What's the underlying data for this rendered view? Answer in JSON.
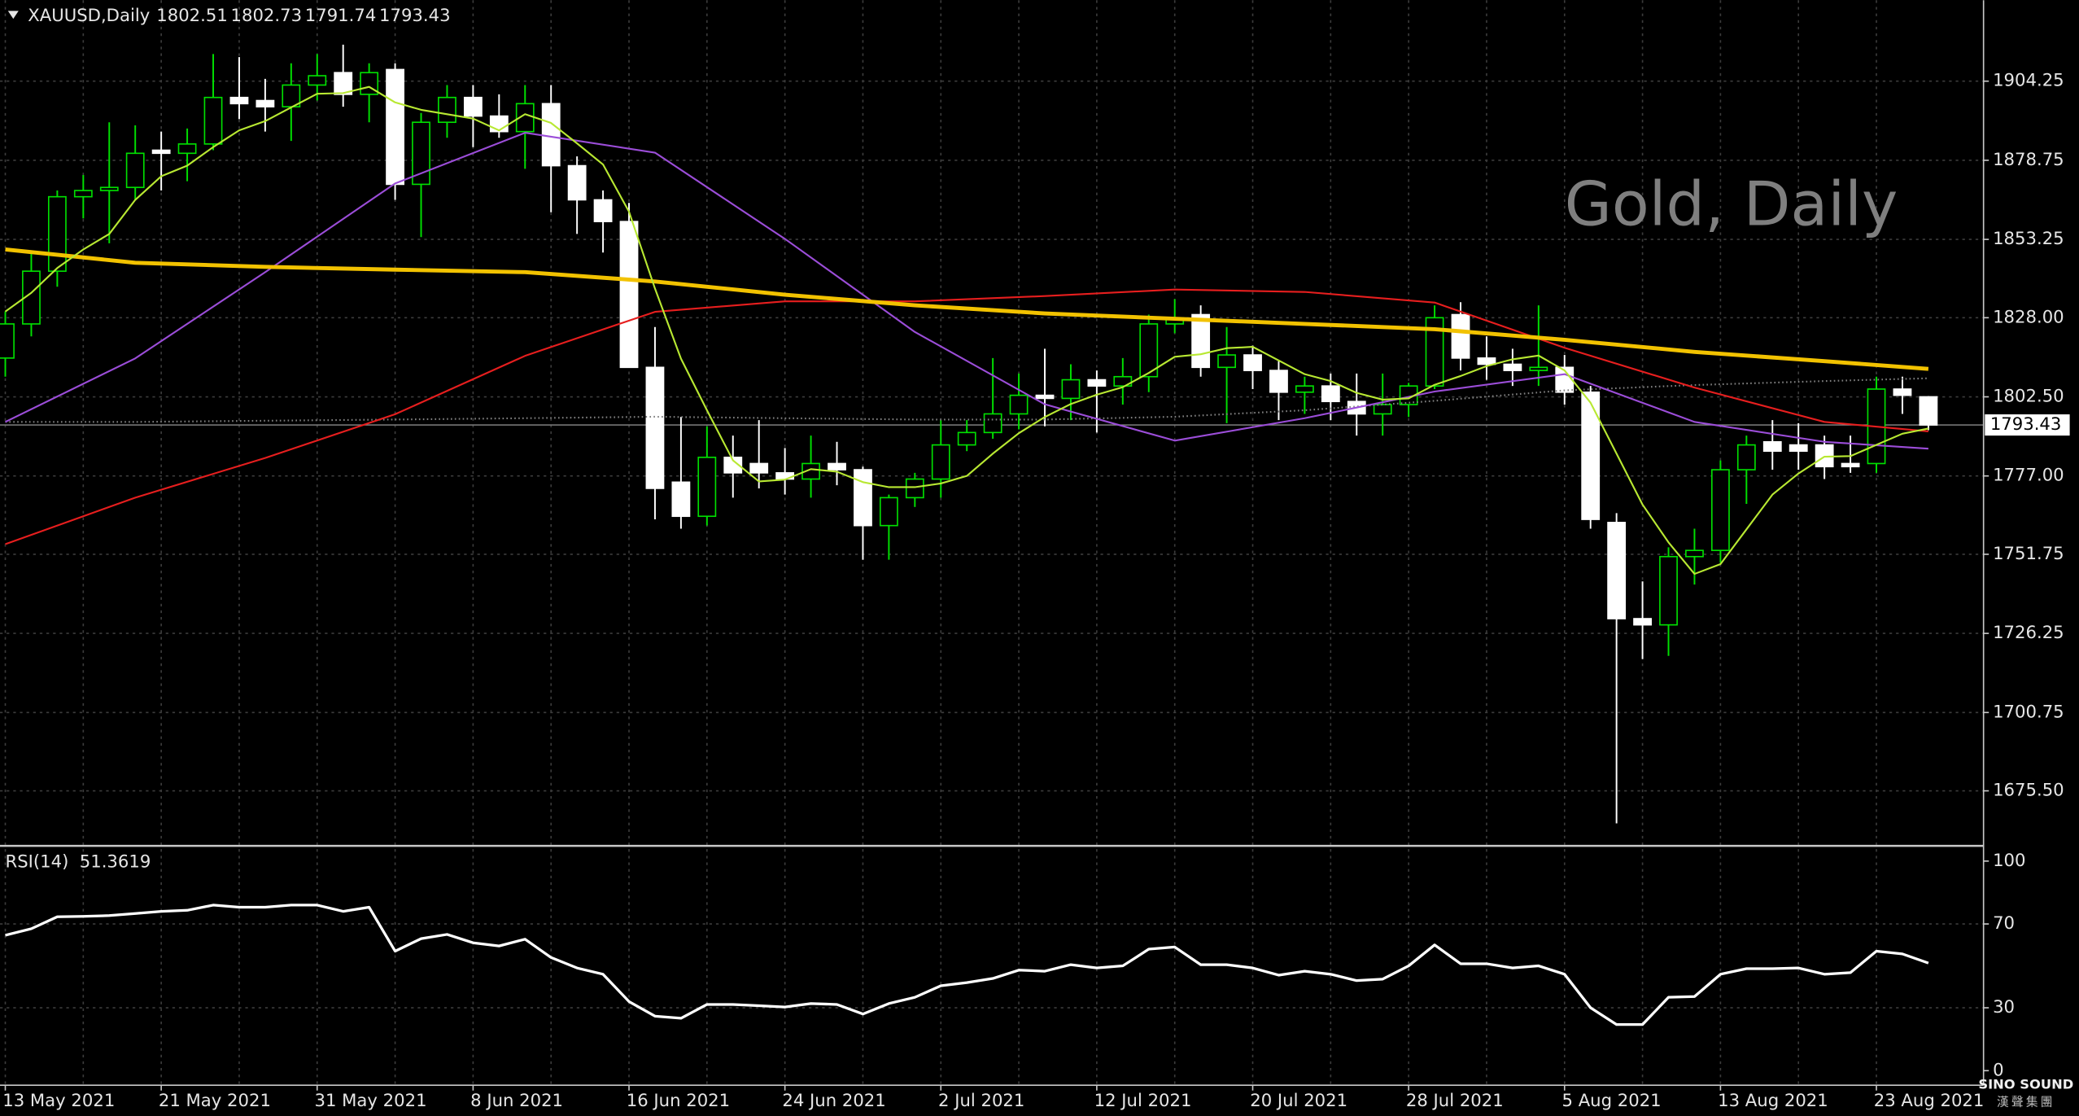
{
  "chart_data": [
    {
      "type": "candlestick",
      "symbol": "XAUUSD,Daily",
      "watermark": "Gold, Daily",
      "categories": [
        "13 May 2021",
        null,
        null,
        null,
        null,
        null,
        "21 May 2021",
        null,
        null,
        null,
        null,
        null,
        "31 May 2021",
        null,
        null,
        null,
        null,
        null,
        "8 Jun 2021",
        null,
        null,
        null,
        null,
        null,
        "16 Jun 2021",
        null,
        null,
        null,
        null,
        null,
        "24 Jun 2021",
        null,
        null,
        null,
        null,
        null,
        "2 Jul 2021",
        null,
        null,
        null,
        null,
        null,
        "12 Jul 2021",
        null,
        null,
        null,
        null,
        null,
        "20 Jul 2021",
        null,
        null,
        null,
        null,
        null,
        "28 Jul 2021",
        null,
        null,
        null,
        null,
        null,
        "5 Aug 2021",
        null,
        null,
        null,
        null,
        null,
        "13 Aug 2021",
        null,
        null,
        null,
        null,
        null,
        "23 Aug 2021",
        null,
        null
      ],
      "open": [
        1815,
        1826,
        1843,
        1867,
        1869,
        1870,
        1882,
        1881,
        1884,
        1899,
        1898,
        1896,
        1903,
        1907,
        1900,
        1908,
        1871,
        1891,
        1899,
        1893,
        1888,
        1897,
        1877,
        1866,
        1859,
        1812,
        1775,
        1764,
        1783,
        1781,
        1778,
        1776,
        1781,
        1779,
        1761,
        1770,
        1776,
        1787,
        1791,
        1797,
        1803,
        1802,
        1808,
        1806,
        1809,
        1826,
        1829,
        1812,
        1816,
        1811,
        1804,
        1806,
        1801,
        1797,
        1800,
        1806,
        1829,
        1815,
        1813,
        1811,
        1812,
        1804,
        1762,
        1731,
        1729,
        1751,
        1753,
        1779,
        1788,
        1787,
        1787,
        1781,
        1781,
        1805,
        1802.51
      ],
      "high": [
        1830,
        1849,
        1869,
        1874,
        1891,
        1890,
        1888,
        1889,
        1913,
        1912,
        1905,
        1910,
        1913,
        1916,
        1910,
        1910,
        1894,
        1903,
        1903,
        1900,
        1903,
        1903,
        1880,
        1869,
        1865,
        1825,
        1796,
        1793,
        1790,
        1795,
        1786,
        1790,
        1788,
        1780,
        1771,
        1778,
        1795,
        1795,
        1815,
        1810,
        1818,
        1813,
        1811,
        1815,
        1829,
        1834,
        1832,
        1825,
        1819,
        1814,
        1809,
        1810,
        1810,
        1810,
        1807,
        1832,
        1833,
        1822,
        1818,
        1832,
        1816,
        1806,
        1765,
        1743,
        1754,
        1760,
        1782,
        1790,
        1795,
        1794,
        1790,
        1790,
        1809,
        1809,
        1802.73
      ],
      "low": [
        1809,
        1822,
        1838,
        1860,
        1852,
        1866,
        1869,
        1872,
        1882,
        1892,
        1888,
        1885,
        1898,
        1896,
        1891,
        1866,
        1854,
        1886,
        1883,
        1886,
        1876,
        1862,
        1855,
        1849,
        1812,
        1763,
        1760,
        1761,
        1770,
        1773,
        1771,
        1770,
        1774,
        1750,
        1750,
        1767,
        1770,
        1785,
        1789,
        1792,
        1793,
        1795,
        1791,
        1800,
        1804,
        1823,
        1809,
        1794,
        1805,
        1795,
        1797,
        1795,
        1790,
        1790,
        1796,
        1805,
        1811,
        1808,
        1806,
        1806,
        1800,
        1760,
        1665,
        1718,
        1719,
        1742,
        1749,
        1768,
        1779,
        1779,
        1776,
        1778,
        1778,
        1797,
        1791.74
      ],
      "close": [
        1826,
        1843,
        1867,
        1869,
        1870,
        1881,
        1881,
        1884,
        1899,
        1897,
        1896,
        1903,
        1906,
        1900,
        1907,
        1871,
        1891,
        1899,
        1893,
        1888,
        1897,
        1877,
        1866,
        1859,
        1812,
        1773,
        1764,
        1783,
        1778,
        1778,
        1776,
        1781,
        1779,
        1761,
        1770,
        1776,
        1787,
        1791,
        1797,
        1803,
        1802,
        1808,
        1806,
        1809,
        1826,
        1828,
        1812,
        1816,
        1811,
        1804,
        1806,
        1801,
        1797,
        1800,
        1806,
        1828,
        1815,
        1813,
        1811,
        1812,
        1804,
        1763,
        1731,
        1729,
        1751,
        1753,
        1779,
        1787,
        1785,
        1785,
        1780,
        1780,
        1805,
        1803,
        1793.43
      ],
      "up_color": "#00e000",
      "down_color": "#ffffff",
      "ylim": [
        1657.99,
        1930.33
      ],
      "yticks": [
        1904.25,
        1878.75,
        1853.25,
        {
          "value": 1828,
          "label": "1828.00"
        },
        {
          "value": 1802.5,
          "label": "1802.50"
        },
        {
          "value": 1777,
          "label": "1777.00"
        },
        1751.75,
        1726.25,
        1700.75,
        {
          "value": 1675.5,
          "label": "1675.50"
        }
      ],
      "grid": true,
      "indicators": [
        {
          "color": "#808080",
          "line_style": "dotted",
          "x": [
            0,
            5,
            10,
            15,
            20,
            25,
            30,
            35,
            40,
            45,
            50,
            55,
            60,
            65,
            70,
            74
          ],
          "values": [
            1794.4,
            1794.4,
            1794.8,
            1795.2,
            1795.6,
            1796.1,
            1795.6,
            1795.2,
            1795.2,
            1796.1,
            1798.2,
            1801.2,
            1804.6,
            1806.3,
            1807.6,
            1808.5
          ]
        },
        {
          "color": "#e61e1e",
          "x": [
            0,
            5,
            10,
            15,
            20,
            25,
            30,
            35,
            40,
            45,
            50,
            55,
            60,
            65,
            70,
            74
          ],
          "values": [
            1755.0,
            1770.0,
            1782.8,
            1796.9,
            1815.7,
            1829.9,
            1833.3,
            1833.3,
            1835.0,
            1837.1,
            1836.3,
            1832.9,
            1818.3,
            1805.5,
            1794.4,
            1791.4
          ]
        },
        {
          "color": "#9b4dd8",
          "x": [
            0,
            5,
            10,
            15,
            20,
            25,
            30,
            35,
            40,
            45,
            50,
            55,
            60,
            65,
            70,
            74
          ],
          "values": [
            1794.4,
            1814.9,
            1842.7,
            1871.3,
            1887.6,
            1881.2,
            1853.4,
            1823.4,
            1800.1,
            1788.4,
            1795.6,
            1804.2,
            1809.8,
            1794.4,
            1788.0,
            1785.8
          ]
        },
        {
          "color": "#f2c200",
          "line_width": 3,
          "x": [
            0,
            5,
            10,
            15,
            20,
            25,
            30,
            35,
            40,
            45,
            50,
            55,
            60,
            65,
            70,
            74
          ],
          "values": [
            1850.0,
            1845.7,
            1844.4,
            1843.5,
            1842.7,
            1839.7,
            1835.4,
            1832.0,
            1829.4,
            1827.7,
            1826.0,
            1824.3,
            1820.9,
            1817.0,
            1814.0,
            1811.5
          ]
        },
        {
          "color": "#b8e832",
          "values": [
            1830,
            1836,
            1844,
            1850,
            1855,
            1866,
            1873.6,
            1877,
            1883,
            1888.4,
            1891.4,
            1895.8,
            1900.2,
            1900.4,
            1902.4,
            1897.4,
            1895,
            1893.6,
            1892.2,
            1888.4,
            1893.6,
            1890.8,
            1884.2,
            1877.4,
            1862.2,
            1837.4,
            1814.8,
            1798.2,
            1782,
            1775.2,
            1775.8,
            1779.2,
            1778.4,
            1775,
            1773.4,
            1773.4,
            1774.6,
            1777,
            1784.2,
            1790.8,
            1796,
            1800.2,
            1803.2,
            1805.6,
            1810.2,
            1815.4,
            1816.2,
            1818.2,
            1818.6,
            1814.2,
            1809.8,
            1807.6,
            1803.8,
            1801.6,
            1802,
            1806.4,
            1809.2,
            1812.4,
            1814.6,
            1815.8,
            1811,
            1800.6,
            1784.2,
            1767.8,
            1755.6,
            1745.4,
            1748.6,
            1759.8,
            1771,
            1777.8,
            1783.2,
            1783.4,
            1787,
            1790.6,
            1792.3
          ]
        }
      ]
    },
    {
      "type": "line",
      "title": "RSI(14)",
      "color": "#ffffff",
      "values": [
        64.6,
        67.7,
        73.4,
        73.6,
        74,
        75,
        76,
        76.5,
        79,
        78,
        78,
        79,
        79,
        76,
        78,
        57,
        63,
        65,
        61,
        59.5,
        62.7,
        54,
        49,
        46,
        33,
        26,
        25,
        31.6,
        31.6,
        31,
        30.4,
        32,
        31.6,
        27,
        32,
        35,
        40.5,
        42,
        44,
        48,
        47.5,
        50.6,
        49,
        50,
        58,
        59,
        50.6,
        50.6,
        49,
        45.6,
        47.5,
        46,
        43,
        43.7,
        50,
        60,
        51,
        51,
        49,
        50,
        46,
        30,
        22,
        22,
        35,
        35.4,
        46,
        48.7,
        48.7,
        49,
        46,
        46.8,
        57,
        55.7,
        51.3619
      ],
      "ylim": [
        -6.96,
        105.7
      ],
      "yticks": [
        0,
        30,
        70,
        100
      ],
      "grid_levels": [
        30,
        70
      ]
    }
  ],
  "logo": {
    "name": "SINO SOUND",
    "subtitle": "漢聲集團"
  }
}
